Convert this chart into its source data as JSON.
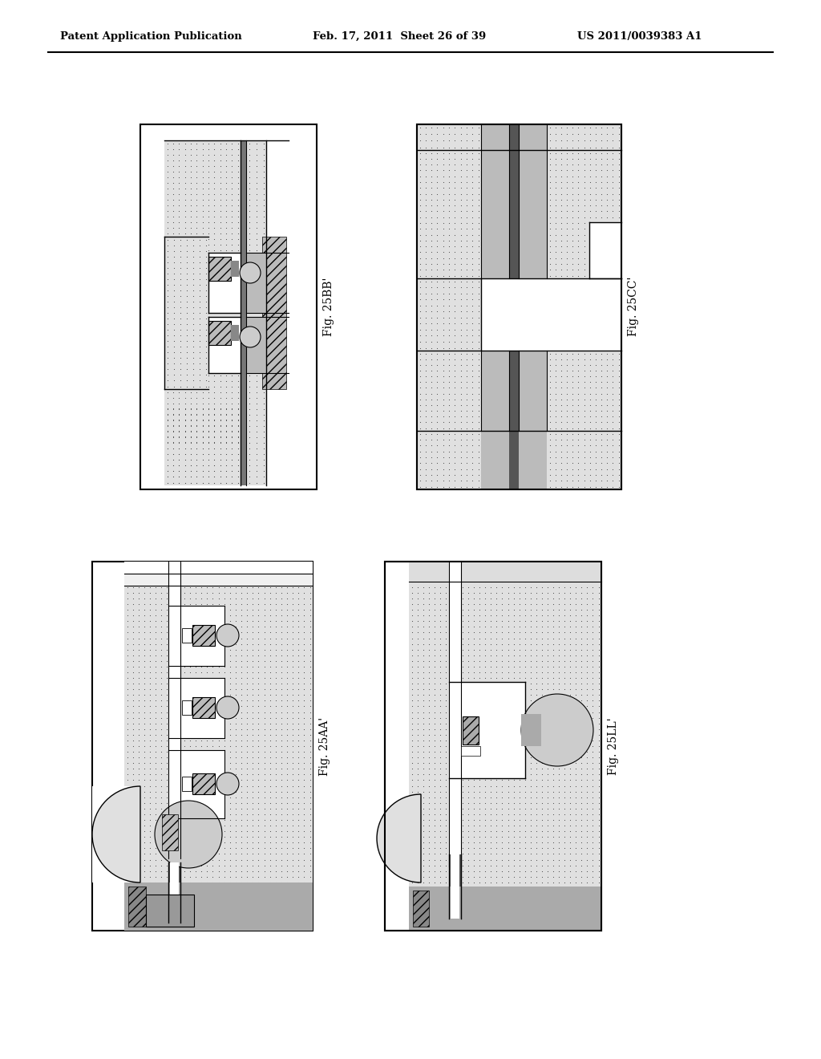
{
  "page_title_left": "Patent Application Publication",
  "page_title_mid": "Feb. 17, 2011  Sheet 26 of 39",
  "page_title_right": "US 2011/0039383 A1",
  "fig_labels": [
    "Fig. 25BB'",
    "Fig. 25CC'",
    "Fig. 25AA'",
    "Fig. 25LL'"
  ],
  "background_color": "#ffffff",
  "stipple_bg": "#e8e8e8",
  "hatch_gray": "#aaaaaa",
  "dark_line": "#222222",
  "mid_gray": "#888888",
  "light_gray": "#cccccc",
  "white": "#ffffff",
  "black": "#000000"
}
